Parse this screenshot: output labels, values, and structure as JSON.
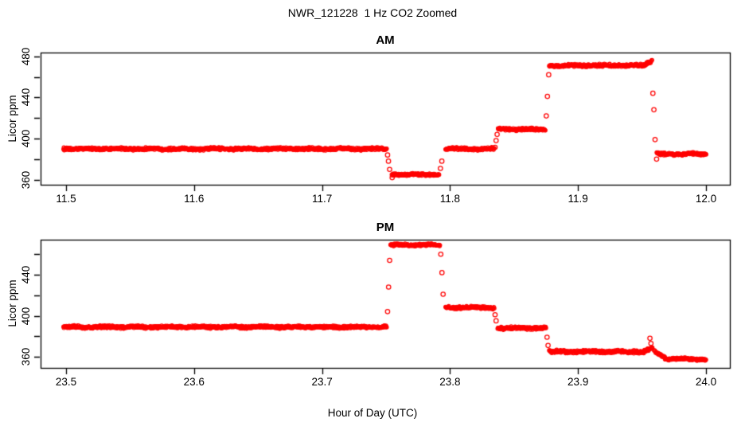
{
  "figure": {
    "title": "NWR_121228  1 Hz CO2 Zoomed",
    "xlabel": "Hour of Day (UTC)",
    "ylabel": "Licor ppm",
    "point_color": "#FF0000",
    "axis_color": "#000000",
    "background": "#FFFFFF"
  },
  "chart_data": [
    {
      "type": "scatter",
      "title": "AM",
      "ylabel": "Licor ppm",
      "marker": "open-circle",
      "color": "#FF0000",
      "sample_rate_hz": 1,
      "xlim": [
        11.5,
        12.0
      ],
      "ylim": [
        355,
        484
      ],
      "x_ticks": [
        11.5,
        11.6,
        11.7,
        11.8,
        11.9,
        12.0
      ],
      "y_ticks": [
        360,
        380,
        400,
        420,
        440,
        460,
        480
      ],
      "y_tick_labels": [
        360,
        400,
        440,
        480
      ],
      "grid": false,
      "step_segments": [
        {
          "x0": 11.498,
          "x1": 11.7505,
          "v0": 390,
          "v1": 390,
          "noise": 1.0
        },
        {
          "x0": 11.7545,
          "x1": 11.7915,
          "v0": 365,
          "v1": 365,
          "noise": 1.0
        },
        {
          "x0": 11.7965,
          "x1": 11.8345,
          "v0": 390,
          "v1": 390,
          "noise": 1.0
        },
        {
          "x0": 11.8375,
          "x1": 11.8745,
          "v0": 409,
          "v1": 409,
          "noise": 1.0
        },
        {
          "x0": 11.8775,
          "x1": 11.9525,
          "v0": 471,
          "v1": 471,
          "noise": 1.1
        },
        {
          "x0": 11.9525,
          "x1": 11.9578,
          "v0": 472,
          "v1": 475,
          "noise": 1.1
        },
        {
          "x0": 11.9615,
          "x1": 12.0,
          "v0": 385,
          "v1": 385,
          "noise": 1.0
        }
      ],
      "transition_points": [
        [
          11.7512,
          384
        ],
        [
          11.7519,
          378
        ],
        [
          11.7528,
          370
        ],
        [
          11.7548,
          362
        ],
        [
          11.7925,
          371
        ],
        [
          11.7936,
          378
        ],
        [
          11.8352,
          391.5
        ],
        [
          11.836,
          398
        ],
        [
          11.8368,
          404
        ],
        [
          11.8752,
          422
        ],
        [
          11.8761,
          441
        ],
        [
          11.8771,
          462
        ],
        [
          11.9585,
          444
        ],
        [
          11.9593,
          428
        ],
        [
          11.9602,
          399
        ],
        [
          11.9614,
          380
        ]
      ]
    },
    {
      "type": "scatter",
      "title": "PM",
      "ylabel": "Licor ppm",
      "marker": "open-circle",
      "color": "#FF0000",
      "sample_rate_hz": 1,
      "xlim": [
        23.5,
        24.0
      ],
      "ylim": [
        349,
        474
      ],
      "x_ticks": [
        23.5,
        23.6,
        23.7,
        23.8,
        23.9,
        24.0
      ],
      "y_ticks": [
        360,
        380,
        400,
        420,
        440,
        460
      ],
      "y_tick_labels": [
        360,
        400,
        440
      ],
      "grid": false,
      "step_segments": [
        {
          "x0": 23.498,
          "x1": 23.7505,
          "v0": 389,
          "v1": 389,
          "noise": 1.0
        },
        {
          "x0": 23.7535,
          "x1": 23.792,
          "v0": 469,
          "v1": 469,
          "noise": 1.0
        },
        {
          "x0": 23.7965,
          "x1": 23.8345,
          "v0": 408,
          "v1": 408,
          "noise": 1.0
        },
        {
          "x0": 23.8372,
          "x1": 23.875,
          "v0": 388,
          "v1": 388,
          "noise": 1.0
        },
        {
          "x0": 23.8775,
          "x1": 23.952,
          "v0": 365,
          "v1": 365,
          "noise": 1.1
        },
        {
          "x0": 23.952,
          "x1": 23.958,
          "v0": 366,
          "v1": 369,
          "noise": 1.0
        },
        {
          "x0": 23.9595,
          "x1": 23.968,
          "v0": 366,
          "v1": 359,
          "noise": 0.8
        },
        {
          "x0": 23.968,
          "x1": 24.0,
          "v0": 358,
          "v1": 357.5,
          "noise": 0.8
        }
      ],
      "transition_points": [
        [
          23.7512,
          404
        ],
        [
          23.752,
          428
        ],
        [
          23.7528,
          454
        ],
        [
          23.7928,
          460
        ],
        [
          23.7937,
          442
        ],
        [
          23.7946,
          421
        ],
        [
          23.8352,
          401
        ],
        [
          23.836,
          395
        ],
        [
          23.8758,
          379
        ],
        [
          23.8766,
          371
        ],
        [
          23.9562,
          378
        ],
        [
          23.957,
          373
        ]
      ]
    }
  ]
}
